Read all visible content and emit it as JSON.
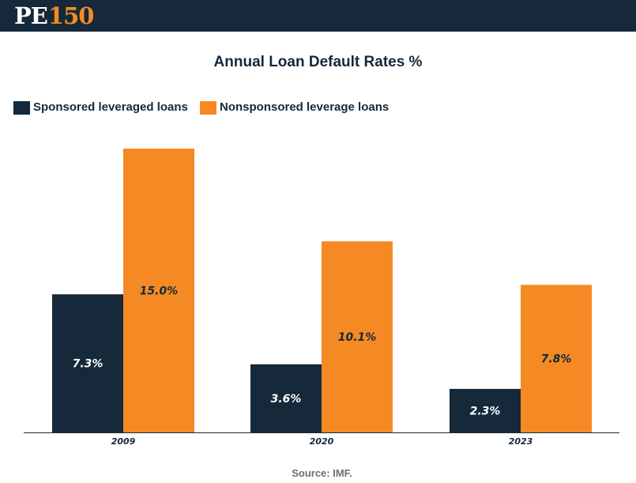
{
  "header": {
    "logo_text_a": "PE",
    "logo_text_b": "150"
  },
  "colors": {
    "header_bg": "#15293a",
    "sponsored": "#15293a",
    "nonsponsored": "#f58a24"
  },
  "chart_data": {
    "type": "bar",
    "title": "Annual Loan Default Rates %",
    "categories": [
      "2009",
      "2020",
      "2023"
    ],
    "series": [
      {
        "name": "Sponsored leveraged loans",
        "values": [
          7.3,
          3.6,
          2.3
        ],
        "labels": [
          "7.3%",
          "3.6%",
          "2.3%"
        ]
      },
      {
        "name": "Nonsponsored leverage loans",
        "values": [
          15.0,
          10.1,
          7.8
        ],
        "labels": [
          "15.0%",
          "10.1%",
          "7.8%"
        ]
      }
    ],
    "ylim": [
      0,
      15
    ],
    "grid": false,
    "legend_position": "top-left"
  },
  "footer": {
    "source": "Source: IMF."
  }
}
